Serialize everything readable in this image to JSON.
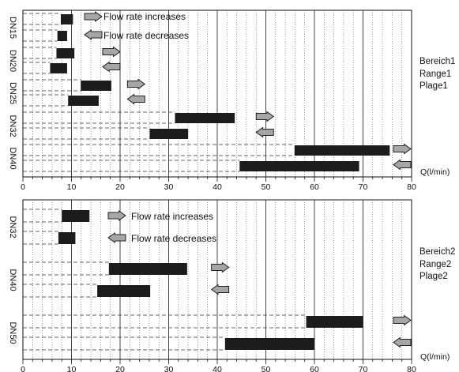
{
  "colors": {
    "bar": "#1c1c1c",
    "arrow_fill": "#a6a6a6",
    "grid": "#333333",
    "dash": "#333333"
  },
  "panels": [
    {
      "range_label": [
        "Bereich1",
        "Range1",
        "Plage1"
      ],
      "axis_title": "Q(l/min)",
      "x_ticks": [
        "0",
        "10",
        "20",
        "30",
        "40",
        "50",
        "60",
        "70",
        "80"
      ],
      "legend": {
        "increase": "Flow rate increases",
        "decrease": "Flow rate decreases"
      },
      "groups": [
        {
          "label": "DN15",
          "rows": [
            {
              "dir": "up",
              "start": 7.8,
              "end": 10.3
            },
            {
              "dir": "down",
              "start": 7.1,
              "end": 9.1
            }
          ]
        },
        {
          "label": "DN20",
          "rows": [
            {
              "dir": "up",
              "start": 6.9,
              "end": 10.6,
              "arrow": 18.2
            },
            {
              "dir": "down",
              "start": 5.6,
              "end": 9.1,
              "arrow": 18.2
            }
          ]
        },
        {
          "label": "DN25",
          "rows": [
            {
              "dir": "up",
              "start": 11.9,
              "end": 18.2,
              "arrow": 23.3
            },
            {
              "dir": "down",
              "start": 9.3,
              "end": 15.6,
              "arrow": 23.3
            }
          ]
        },
        {
          "label": "DN32",
          "rows": [
            {
              "dir": "up",
              "start": 31.3,
              "end": 43.6,
              "arrow": 49.8
            },
            {
              "dir": "down",
              "start": 26.1,
              "end": 34.0,
              "arrow": 49.8
            }
          ]
        },
        {
          "label": "DN40",
          "rows": [
            {
              "dir": "up",
              "start": 55.9,
              "end": 75.5,
              "arrow": 80
            },
            {
              "dir": "down",
              "start": 44.6,
              "end": 69.2,
              "arrow": 80
            }
          ]
        }
      ]
    },
    {
      "range_label": [
        "Bereich2",
        "Range2",
        "Plage2"
      ],
      "axis_title": "Q(l/min)",
      "x_ticks": [
        "0",
        "10",
        "20",
        "30",
        "40",
        "50",
        "60",
        "70",
        "80"
      ],
      "legend": {
        "increase": "Flow rate increases",
        "decrease": "Flow rate decreases"
      },
      "groups": [
        {
          "label": "DN32",
          "rows": [
            {
              "dir": "up",
              "start": 8.0,
              "end": 13.7
            },
            {
              "dir": "down",
              "start": 7.3,
              "end": 10.8
            }
          ]
        },
        {
          "label": "DN40",
          "rows": [
            {
              "dir": "up",
              "start": 17.7,
              "end": 33.8,
              "arrow": 40.6
            },
            {
              "dir": "down",
              "start": 15.3,
              "end": 26.2,
              "arrow": 40.6
            }
          ]
        },
        {
          "label": "DN50",
          "rows": [
            {
              "dir": "up",
              "start": 58.3,
              "end": 70.0,
              "arrow": 80
            },
            {
              "dir": "down",
              "start": 41.6,
              "end": 60.0,
              "arrow": 80
            }
          ]
        }
      ]
    }
  ]
}
